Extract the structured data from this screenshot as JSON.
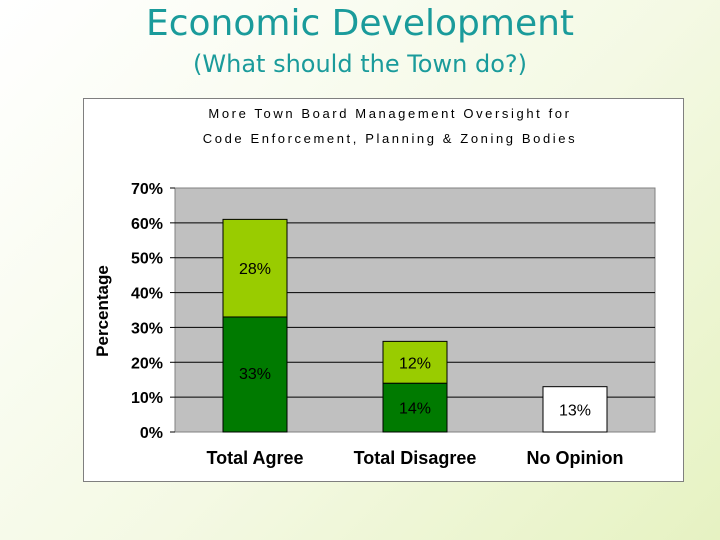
{
  "slide": {
    "title": "Economic Development",
    "subtitle": "(What should the Town do?)"
  },
  "chart_data": {
    "type": "bar",
    "stacked": true,
    "title_lines": [
      "More Town Board Management Oversight for",
      "Code Enforcement, Planning & Zoning Bodies"
    ],
    "xlabel": "",
    "ylabel": "Percentage",
    "categories": [
      "Total Agree",
      "Total Disagree",
      "No Opinion"
    ],
    "ylim": [
      0,
      70
    ],
    "yticks": [
      "0%",
      "10%",
      "20%",
      "30%",
      "40%",
      "50%",
      "60%",
      "70%"
    ],
    "grid": true,
    "series": [
      {
        "values": [
          33,
          14,
          13
        ],
        "labels": [
          "33%",
          "14%",
          "13%"
        ],
        "colors": [
          "#007a00",
          "#007a00",
          "#ffffff"
        ]
      },
      {
        "values": [
          28,
          12,
          0
        ],
        "labels": [
          "28%",
          "12%",
          ""
        ],
        "colors": [
          "#99cc00",
          "#99cc00",
          "#99cc00"
        ]
      }
    ],
    "plot_background": "#c0c0c0"
  }
}
